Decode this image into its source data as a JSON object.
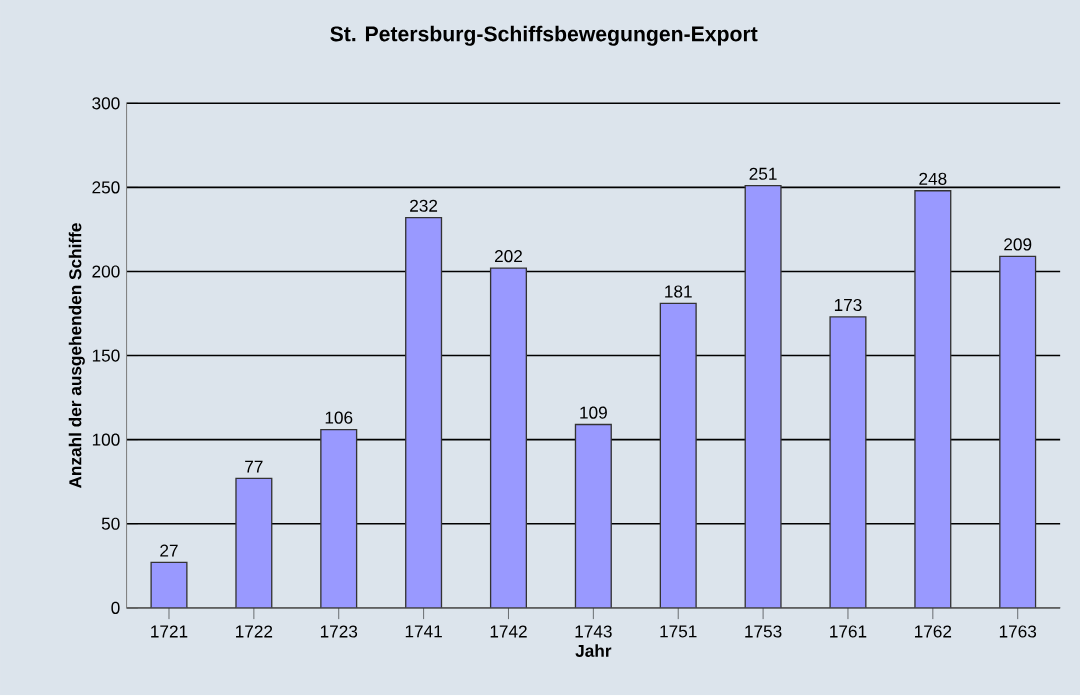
{
  "chart_data": {
    "type": "bar",
    "title": "St. Petersburg-Schiffsbewegungen-Export",
    "xlabel": "Jahr",
    "ylabel": "Anzahl der ausgehenden Schiffe",
    "categories": [
      "1721",
      "1722",
      "1723",
      "1741",
      "1742",
      "1743",
      "1751",
      "1753",
      "1761",
      "1762",
      "1763"
    ],
    "values": [
      27,
      77,
      106,
      232,
      202,
      109,
      181,
      251,
      173,
      248,
      209
    ],
    "color": "#9999ff",
    "ylim": [
      0,
      300
    ],
    "yticks": [
      0,
      50,
      100,
      150,
      200,
      250,
      300
    ],
    "grid": "y",
    "data_labels": true
  }
}
